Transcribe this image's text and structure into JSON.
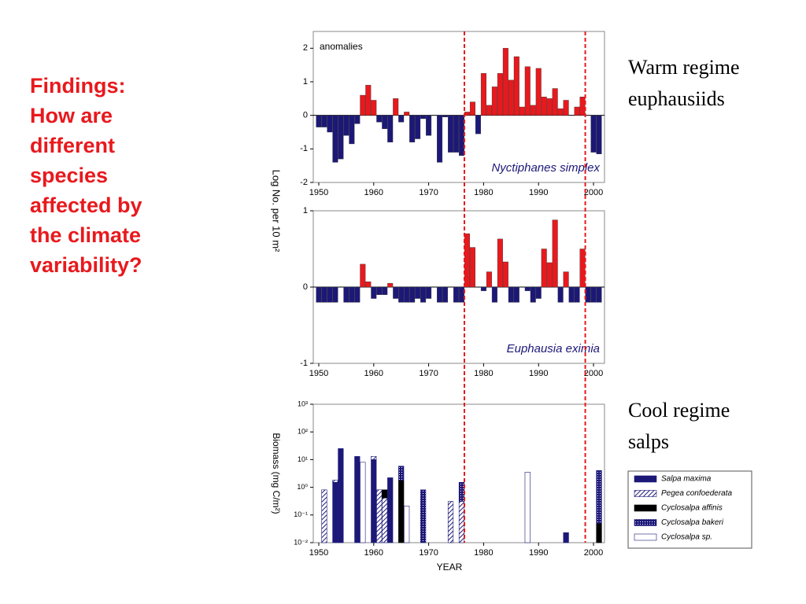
{
  "heading_lines": [
    "Findings:",
    "How are",
    "different",
    "species",
    "affected by",
    "the climate",
    "variability?"
  ],
  "warm_label": [
    "Warm regime",
    "euphausiids"
  ],
  "cool_label": [
    "Cool regime",
    "salps"
  ],
  "shared_ylabel": "Log No. per 10 m²",
  "regime_shifts": [
    1976.5,
    1998.5
  ],
  "chart_data": [
    {
      "type": "bar",
      "annotation": "anomalies",
      "species": "Nyctiphanes simplex",
      "pos_color": "#e8191d",
      "neg_color": "#1c1878",
      "x": [
        1950,
        1951,
        1952,
        1953,
        1954,
        1955,
        1956,
        1957,
        1958,
        1959,
        1960,
        1961,
        1962,
        1963,
        1964,
        1965,
        1966,
        1967,
        1968,
        1969,
        1970,
        1971,
        1972,
        1973,
        1974,
        1975,
        1976,
        1977,
        1978,
        1979,
        1980,
        1981,
        1982,
        1983,
        1984,
        1985,
        1986,
        1987,
        1988,
        1989,
        1990,
        1991,
        1992,
        1993,
        1994,
        1995,
        1996,
        1997,
        1998,
        1999,
        2000,
        2001
      ],
      "values": [
        -0.35,
        -0.35,
        -0.5,
        -1.4,
        -1.3,
        -0.6,
        -0.85,
        -0.25,
        0.6,
        0.9,
        0.45,
        -0.2,
        -0.4,
        -0.8,
        0.5,
        -0.2,
        0.1,
        -0.8,
        -0.7,
        -0.1,
        -0.6,
        0,
        -1.4,
        -0.05,
        -1.1,
        -1.1,
        -1.2,
        0.1,
        0.4,
        -0.55,
        1.25,
        0.3,
        0.85,
        1.25,
        2.0,
        1.05,
        1.75,
        0.25,
        1.45,
        0.3,
        1.4,
        0.55,
        0.5,
        0.8,
        0.2,
        0.45,
        0,
        0.25,
        0.55,
        0,
        -1.1,
        -1.15
      ],
      "xlim": [
        1949,
        2002
      ],
      "xticks": [
        1950,
        1960,
        1970,
        1980,
        1990,
        2000
      ],
      "ylim": [
        -2,
        2.5
      ],
      "yticks": [
        -2,
        -1,
        0,
        1,
        2
      ]
    },
    {
      "type": "bar",
      "species": "Euphausia eximia",
      "pos_color": "#e8191d",
      "neg_color": "#1c1878",
      "x": [
        1950,
        1951,
        1952,
        1953,
        1954,
        1955,
        1956,
        1957,
        1958,
        1959,
        1960,
        1961,
        1962,
        1963,
        1964,
        1965,
        1966,
        1967,
        1968,
        1969,
        1970,
        1971,
        1972,
        1973,
        1974,
        1975,
        1976,
        1977,
        1978,
        1979,
        1980,
        1981,
        1982,
        1983,
        1984,
        1985,
        1986,
        1987,
        1988,
        1989,
        1990,
        1991,
        1992,
        1993,
        1994,
        1995,
        1996,
        1997,
        1998,
        1999,
        2000,
        2001
      ],
      "values": [
        -0.2,
        -0.2,
        -0.2,
        -0.2,
        0,
        -0.2,
        -0.2,
        -0.2,
        0.3,
        0.07,
        -0.15,
        -0.1,
        -0.1,
        0.05,
        -0.15,
        -0.2,
        -0.2,
        -0.2,
        -0.15,
        -0.2,
        -0.15,
        0,
        -0.2,
        -0.2,
        0,
        -0.2,
        -0.2,
        0.7,
        0.52,
        0,
        -0.05,
        0.2,
        -0.2,
        0.63,
        0.33,
        -0.2,
        -0.2,
        0,
        -0.05,
        -0.2,
        -0.15,
        0.5,
        0.32,
        0.88,
        -0.2,
        0.2,
        -0.2,
        -0.2,
        0.5,
        -0.2,
        -0.2,
        -0.2
      ],
      "xlim": [
        1949,
        2002
      ],
      "xticks": [
        1950,
        1960,
        1970,
        1980,
        1990,
        2000
      ],
      "ylim": [
        -1,
        1
      ],
      "yticks": [
        -1,
        0,
        1
      ]
    },
    {
      "type": "stacked_bar",
      "log_scale": true,
      "ylabel": "Biomass  (mg C/m²)",
      "xlabel": "YEAR",
      "x": [
        1951,
        1953,
        1954,
        1957,
        1958,
        1960,
        1961,
        1962,
        1963,
        1965,
        1966,
        1969,
        1974,
        1976,
        1988,
        1995,
        2001
      ],
      "series": [
        {
          "name": "Salpa maxima",
          "color": "#1c1878",
          "pattern": "solid",
          "values": [
            null,
            1.5,
            25,
            13,
            null,
            10,
            null,
            null,
            2.2,
            null,
            null,
            null,
            null,
            null,
            null,
            0.013,
            null
          ]
        },
        {
          "name": "Pegea confoederata",
          "color": "#1c1878",
          "pattern": "hatch",
          "values": [
            0.8,
            0.3,
            null,
            null,
            null,
            3,
            0.8,
            0.4,
            null,
            null,
            null,
            null,
            0.3,
            0.3,
            null,
            null,
            null
          ]
        },
        {
          "name": "Cyclosalpa affinis",
          "color": "#000000",
          "pattern": "solid",
          "values": [
            null,
            null,
            null,
            null,
            null,
            null,
            null,
            0.4,
            null,
            1.8,
            null,
            null,
            null,
            null,
            null,
            null,
            0.04
          ]
        },
        {
          "name": "Cyclosalpa bakeri",
          "color": "#1c1878",
          "pattern": "crosshatch",
          "values": [
            null,
            null,
            null,
            null,
            null,
            null,
            null,
            null,
            null,
            4,
            null,
            0.8,
            null,
            1.2,
            null,
            null,
            4
          ]
        },
        {
          "name": "Cyclosalpa sp.",
          "color": "#1c1878",
          "pattern": "hollow",
          "values": [
            null,
            null,
            null,
            null,
            8,
            null,
            null,
            null,
            null,
            null,
            0.2,
            null,
            null,
            null,
            3.5,
            null,
            null
          ]
        }
      ],
      "xlim": [
        1949,
        2002
      ],
      "xticks": [
        1950,
        1960,
        1970,
        1980,
        1990,
        2000
      ],
      "ylim": [
        0.01,
        1000
      ],
      "yticks": [
        {
          "value": 0.01,
          "label": "10⁻²"
        },
        {
          "value": 0.1,
          "label": "10⁻¹"
        },
        {
          "value": 1,
          "label": "10⁰"
        },
        {
          "value": 10,
          "label": "10¹"
        },
        {
          "value": 100,
          "label": "10²"
        },
        {
          "value": 1000,
          "label": "10³"
        }
      ]
    }
  ]
}
